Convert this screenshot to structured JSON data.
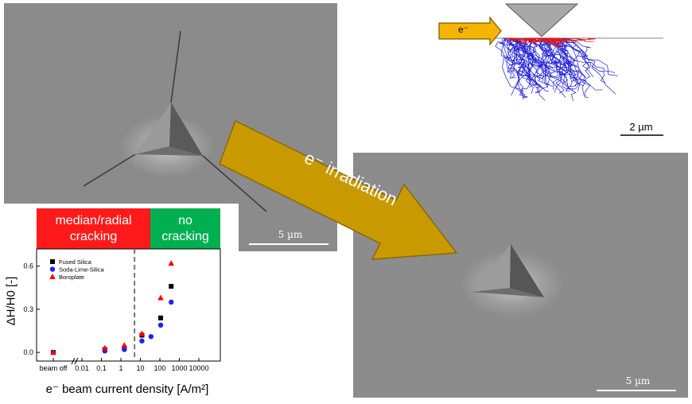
{
  "sem_top_left": {
    "scale_label": "5 µm"
  },
  "sem_bottom_right": {
    "scale_label": "5 µm"
  },
  "simulation": {
    "beam_label": "e⁻",
    "scale_label": "2 µm"
  },
  "arrow": {
    "label": "e⁻ irradiation"
  },
  "colors": {
    "red_region": "#ff1a1a",
    "green_region": "#00b050",
    "arrow_fill": "#c99a00",
    "fused_silica": "#000000",
    "soda_lime_silica": "#1f1fff",
    "boroplate": "#ff0000"
  },
  "chart_data": {
    "type": "scatter",
    "title": "",
    "regions": [
      {
        "label_line1": "median/radial",
        "label_line2": "cracking",
        "color": "#ff1a1a"
      },
      {
        "label_line1": "no",
        "label_line2": "cracking",
        "color": "#00b050"
      }
    ],
    "ylabel": "ΔH/H0 [-]",
    "xlabel": "e⁻ beam current density [A/m²]",
    "x_scale": "log",
    "x_ticklabels": [
      "beam off",
      "0.01",
      "0.1",
      "1",
      "10",
      "100",
      "1000",
      "10000"
    ],
    "y_ticklabels": [
      "0.0",
      "0.3",
      "0.6"
    ],
    "ylim": [
      -0.06,
      0.72
    ],
    "threshold_x": 5,
    "legend_position": "top-left",
    "series": [
      {
        "name": "Fused Silica",
        "marker": "square",
        "color": "#000000",
        "points": [
          [
            "beam off",
            0.0
          ],
          [
            0.15,
            0.02
          ],
          [
            1.5,
            0.03
          ],
          [
            12,
            0.12
          ],
          [
            110,
            0.24
          ],
          [
            380,
            0.46
          ]
        ]
      },
      {
        "name": "Soda-Lime-Silica",
        "marker": "circle",
        "color": "#1f1fff",
        "points": [
          [
            "beam off",
            0.0
          ],
          [
            0.15,
            0.01
          ],
          [
            1.5,
            0.02
          ],
          [
            12,
            0.08
          ],
          [
            35,
            0.11
          ],
          [
            110,
            0.19
          ],
          [
            380,
            0.35
          ]
        ]
      },
      {
        "name": "Boroplate",
        "marker": "triangle",
        "color": "#ff0000",
        "points": [
          [
            "beam off",
            0.0
          ],
          [
            0.15,
            0.03
          ],
          [
            1.5,
            0.05
          ],
          [
            12,
            0.13
          ],
          [
            110,
            0.38
          ],
          [
            380,
            0.62
          ]
        ]
      }
    ]
  }
}
